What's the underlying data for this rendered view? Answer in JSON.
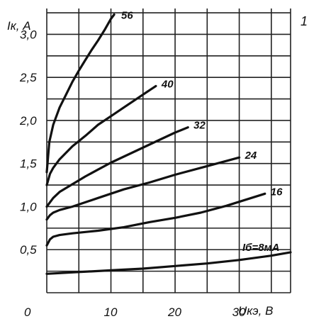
{
  "chart_data": {
    "type": "line",
    "corner_label": "1",
    "ylabel": "Iк, A",
    "xlabel": "Uкэ, B",
    "xlim": [
      0,
      38
    ],
    "ylim": [
      0,
      3.3
    ],
    "grid": true,
    "x_ticks": [
      0,
      10,
      20,
      30
    ],
    "x_tick_labels": [
      "0",
      "10",
      "20",
      "30"
    ],
    "y_ticks": [
      0.5,
      1.0,
      1.5,
      2.0,
      2.5,
      3.0
    ],
    "y_tick_labels": [
      "0,5",
      "1,0",
      "1,5",
      "2,0",
      "2,5",
      "3,0"
    ],
    "series": [
      {
        "name": "56",
        "x": [
          0,
          0.4,
          1,
          2,
          3,
          4,
          5,
          6,
          7,
          8,
          9,
          10,
          10.5
        ],
        "y": [
          1.4,
          1.75,
          1.95,
          2.15,
          2.3,
          2.45,
          2.58,
          2.7,
          2.82,
          2.93,
          3.05,
          3.18,
          3.23
        ]
      },
      {
        "name": "40",
        "x": [
          0,
          0.5,
          1,
          2,
          4,
          6,
          8,
          10,
          12,
          14,
          16,
          17
        ],
        "y": [
          1.25,
          1.38,
          1.45,
          1.55,
          1.7,
          1.82,
          1.95,
          2.05,
          2.15,
          2.25,
          2.35,
          2.4
        ]
      },
      {
        "name": "32",
        "x": [
          0,
          0.5,
          1,
          2,
          4,
          6,
          8,
          10,
          12,
          14,
          16,
          18,
          20,
          22
        ],
        "y": [
          1.0,
          1.05,
          1.1,
          1.17,
          1.26,
          1.35,
          1.43,
          1.51,
          1.58,
          1.65,
          1.72,
          1.79,
          1.86,
          1.92
        ]
      },
      {
        "name": "24",
        "x": [
          0,
          0.5,
          1,
          2,
          4,
          8,
          12,
          16,
          20,
          24,
          28,
          30
        ],
        "y": [
          0.85,
          0.9,
          0.93,
          0.96,
          1.0,
          1.1,
          1.2,
          1.28,
          1.37,
          1.45,
          1.53,
          1.57
        ]
      },
      {
        "name": "16",
        "x": [
          0,
          0.5,
          1,
          2,
          4,
          8,
          12,
          16,
          20,
          24,
          28,
          31,
          34
        ],
        "y": [
          0.55,
          0.62,
          0.65,
          0.67,
          0.69,
          0.72,
          0.76,
          0.82,
          0.87,
          0.93,
          1.01,
          1.08,
          1.15
        ]
      },
      {
        "name": "Iб=8мA",
        "x": [
          0,
          5,
          10,
          15,
          20,
          25,
          30,
          35,
          38
        ],
        "y": [
          0.22,
          0.24,
          0.26,
          0.28,
          0.31,
          0.34,
          0.38,
          0.43,
          0.47
        ]
      }
    ]
  }
}
